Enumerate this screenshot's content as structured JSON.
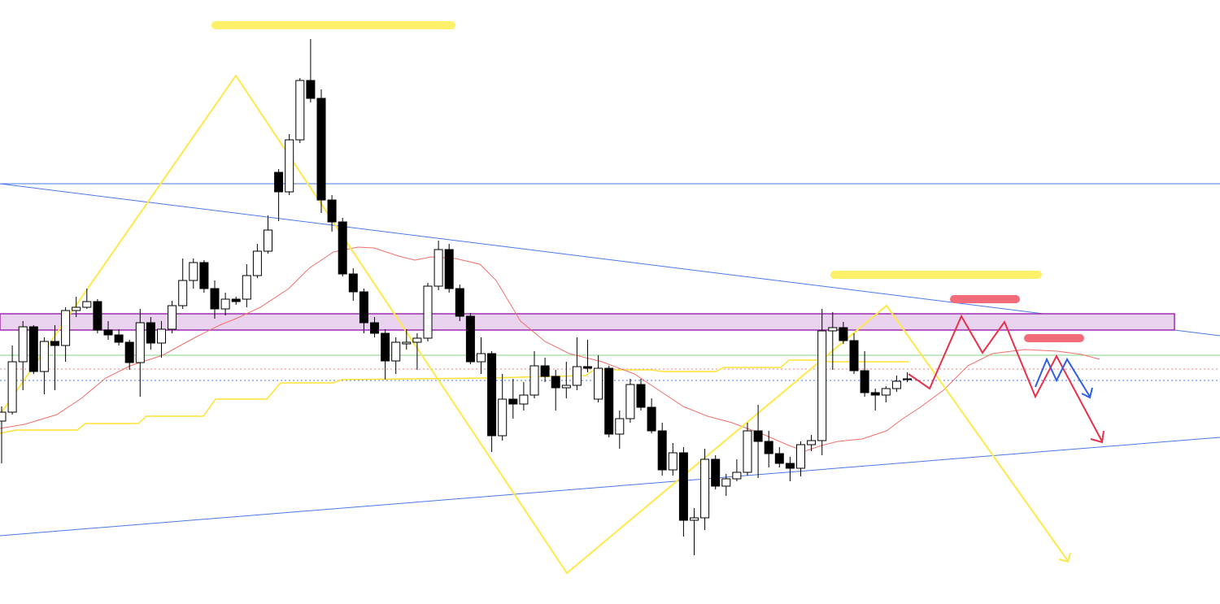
{
  "chart_data": {
    "type": "candlestick",
    "ylim": [
      0,
      743
    ],
    "up_color": "#ffffff",
    "down_color": "#000000",
    "wick_color": "#000000",
    "open": [
      225,
      236,
      298,
      341,
      286,
      323,
      318,
      361,
      365,
      372,
      337,
      331,
      322,
      297,
      346,
      321,
      338,
      367,
      398,
      420,
      388,
      363,
      375,
      375,
      404,
      434,
      531,
      507,
      571,
      644,
      622,
      497,
      470,
      406,
      384,
      346,
      333,
      299,
      320,
      322,
      327,
      391,
      436,
      388,
      354,
      298,
      308,
      207,
      252,
      246,
      257,
      293,
      280,
      266,
      269,
      292,
      252,
      290,
      209,
      228,
      270,
      242,
      213,
      165,
      186,
      103,
      106,
      178,
      145,
      154,
      162,
      213,
      200,
      185,
      173,
      167,
      196,
      201,
      336,
      340,
      324,
      287,
      260,
      257,
      265,
      276
    ],
    "high": [
      243,
      318,
      348,
      343,
      328,
      343,
      365,
      378,
      388,
      375,
      348,
      338,
      325,
      363,
      353,
      348,
      373,
      425,
      425,
      423,
      398,
      383,
      378,
      418,
      443,
      478,
      535,
      578,
      647,
      695,
      633,
      503,
      475,
      413,
      388,
      353,
      338,
      328,
      338,
      333,
      395,
      447,
      443,
      393,
      358,
      328,
      311,
      283,
      277,
      273,
      311,
      303,
      288,
      298,
      328,
      325,
      306,
      293,
      238,
      277,
      277,
      253,
      223,
      198,
      193,
      118,
      191,
      183,
      160,
      178,
      223,
      245,
      213,
      193,
      181,
      200,
      208,
      363,
      359,
      347,
      333,
      311,
      265,
      268,
      281,
      285
    ],
    "low": [
      173,
      233,
      263,
      283,
      258,
      263,
      298,
      353,
      363,
      333,
      325,
      318,
      288,
      255,
      313,
      303,
      333,
      363,
      388,
      383,
      351,
      355,
      368,
      365,
      401,
      431,
      471,
      503,
      567,
      617,
      481,
      458,
      403,
      373,
      333,
      328,
      276,
      283,
      313,
      288,
      323,
      386,
      383,
      348,
      295,
      283,
      187,
      201,
      228,
      238,
      253,
      273,
      238,
      253,
      263,
      285,
      248,
      205,
      191,
      223,
      238,
      210,
      158,
      158,
      83,
      60,
      91,
      141,
      133,
      151,
      158,
      155,
      168,
      168,
      151,
      157,
      188,
      183,
      288,
      320,
      283,
      255,
      238,
      248,
      261,
      273
    ],
    "close": [
      236,
      298,
      341,
      286,
      323,
      318,
      361,
      365,
      372,
      337,
      331,
      322,
      297,
      346,
      321,
      338,
      367,
      398,
      420,
      388,
      363,
      375,
      372,
      404,
      434,
      460,
      507,
      571,
      644,
      622,
      497,
      470,
      406,
      384,
      346,
      333,
      299,
      322,
      322,
      327,
      391,
      436,
      388,
      354,
      298,
      308,
      207,
      252,
      246,
      257,
      293,
      280,
      266,
      269,
      292,
      290,
      290,
      209,
      228,
      270,
      242,
      213,
      165,
      186,
      103,
      106,
      178,
      145,
      154,
      162,
      213,
      200,
      185,
      173,
      167,
      196,
      201,
      336,
      340,
      324,
      287,
      260,
      257,
      265,
      274,
      277
    ]
  }
}
